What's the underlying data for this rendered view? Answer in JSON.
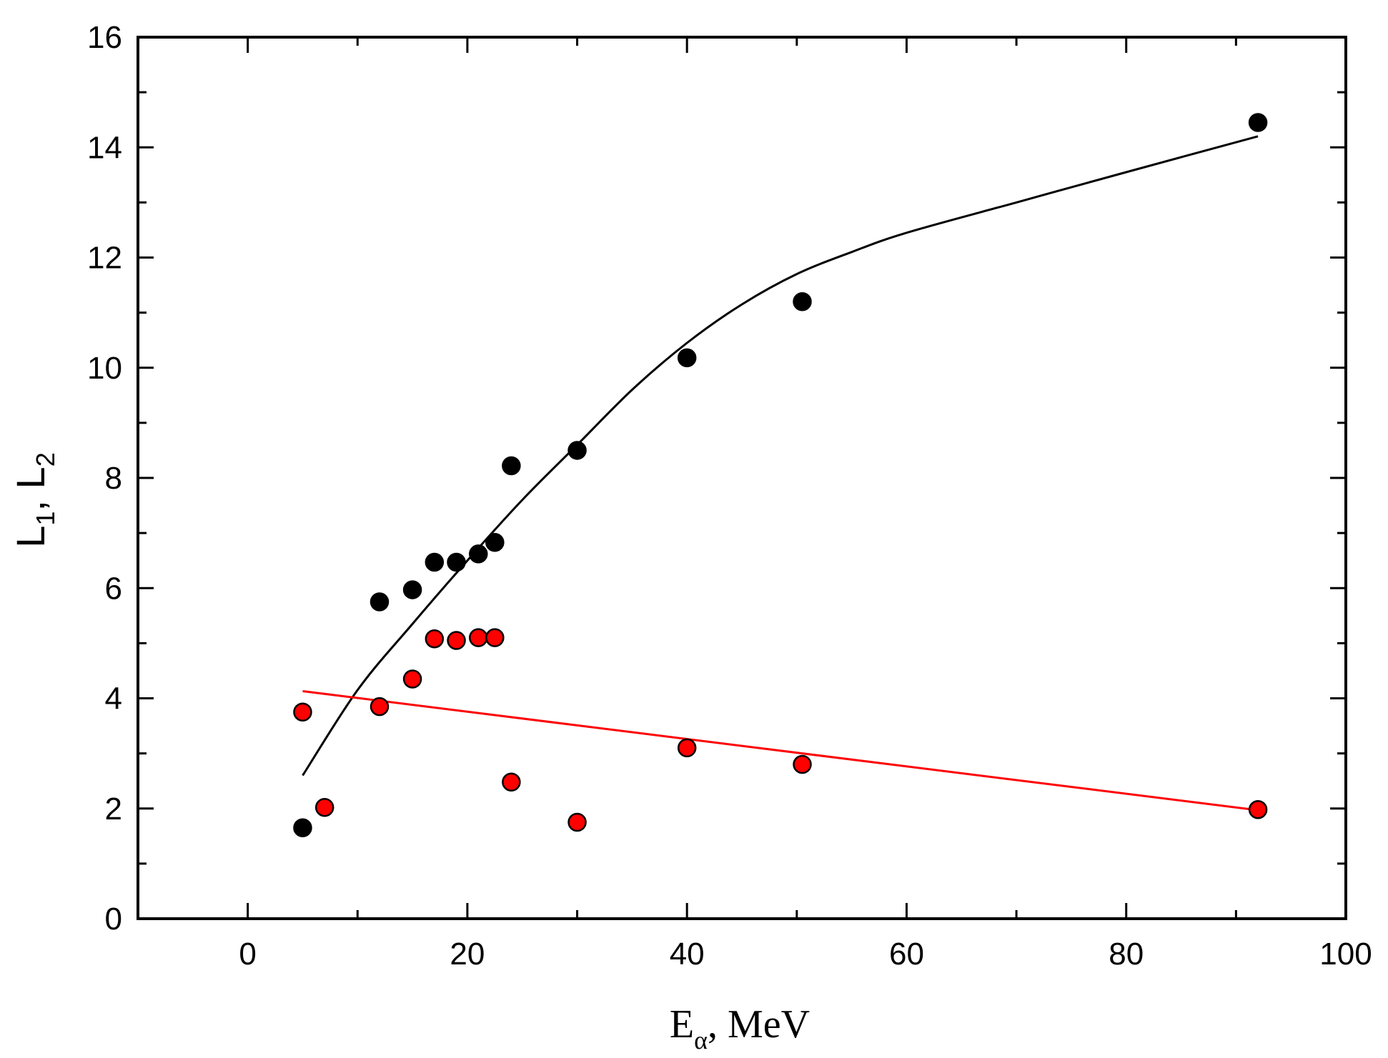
{
  "chart_data": {
    "type": "scatter",
    "title": "",
    "xlabel": {
      "main": "E",
      "sub": "α",
      "suffix": ", MeV"
    },
    "ylabel": {
      "part1": "L",
      "sub1": "1",
      "sep": ", ",
      "part2": "L",
      "sub2": "2"
    },
    "xlim": [
      -10,
      100
    ],
    "ylim": [
      0,
      16
    ],
    "xticks": [
      0,
      20,
      40,
      60,
      80,
      100
    ],
    "yticks": [
      0,
      2,
      4,
      6,
      8,
      10,
      12,
      14,
      16
    ],
    "x_minor_step": 10,
    "y_minor_step": 1,
    "grid": false,
    "series": [
      {
        "name": "L1",
        "color": "#000000",
        "marker_stroke": "#000000",
        "points": [
          [
            5,
            1.65
          ],
          [
            12,
            5.75
          ],
          [
            15,
            5.97
          ],
          [
            17,
            6.47
          ],
          [
            19,
            6.47
          ],
          [
            21,
            6.62
          ],
          [
            22.5,
            6.83
          ],
          [
            24,
            8.22
          ],
          [
            30,
            8.5
          ],
          [
            40,
            10.18
          ],
          [
            50.5,
            11.2
          ],
          [
            92,
            14.45
          ]
        ],
        "fit": [
          [
            5,
            2.6
          ],
          [
            10,
            4.15
          ],
          [
            15,
            5.35
          ],
          [
            20,
            6.5
          ],
          [
            25,
            7.6
          ],
          [
            30,
            8.6
          ],
          [
            35,
            9.6
          ],
          [
            40,
            10.45
          ],
          [
            45,
            11.15
          ],
          [
            50,
            11.7
          ],
          [
            55,
            12.1
          ],
          [
            60,
            12.45
          ],
          [
            70,
            13.0
          ],
          [
            80,
            13.55
          ],
          [
            92,
            14.2
          ]
        ]
      },
      {
        "name": "L2",
        "color": "#ff0000",
        "marker_stroke": "#000000",
        "points": [
          [
            5,
            3.75
          ],
          [
            7,
            2.02
          ],
          [
            12,
            3.85
          ],
          [
            15,
            4.35
          ],
          [
            17,
            5.08
          ],
          [
            19,
            5.05
          ],
          [
            21,
            5.1
          ],
          [
            22.5,
            5.1
          ],
          [
            24,
            2.48
          ],
          [
            30,
            1.75
          ],
          [
            40,
            3.1
          ],
          [
            50.5,
            2.8
          ],
          [
            92,
            1.98
          ]
        ],
        "fit": [
          [
            5,
            4.13
          ],
          [
            92,
            1.97
          ]
        ]
      }
    ]
  }
}
